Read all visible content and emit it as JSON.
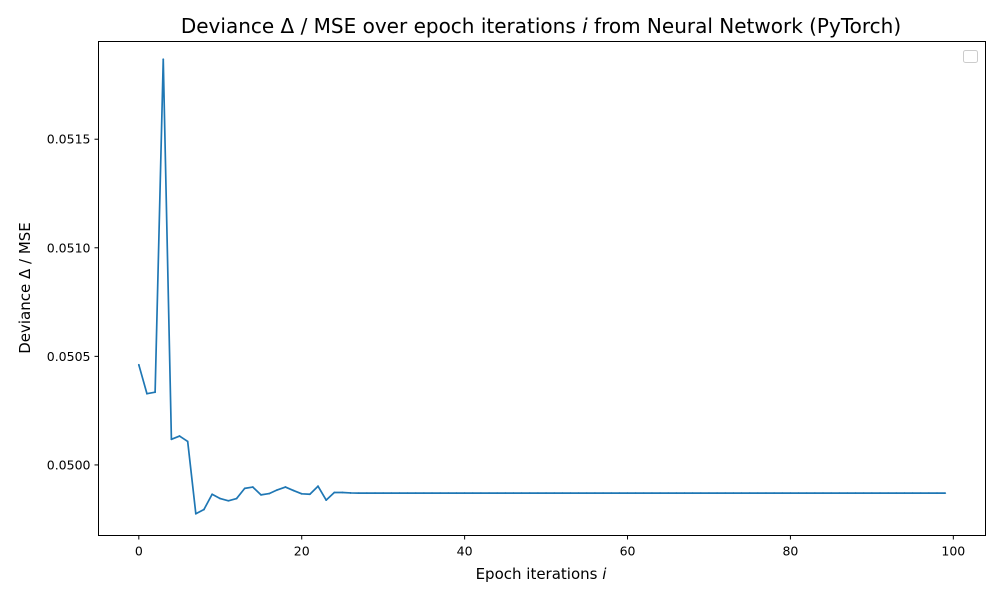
{
  "chart_data": {
    "type": "line",
    "title": "Deviance Δ / MSE over epoch iterations ",
    "title_var": "i",
    "title_suffix": " from Neural Network (PyTorch)",
    "xlabel": "Epoch iterations ",
    "xlabel_var": "i",
    "ylabel": "Deviance Δ / MSE",
    "xlim": [
      -4.95,
      103.95
    ],
    "ylim": [
      0.049675,
      0.05195
    ],
    "xticks": [
      0,
      20,
      40,
      60,
      80,
      100
    ],
    "xtick_labels": [
      "0",
      "20",
      "40",
      "60",
      "80",
      "100"
    ],
    "yticks": [
      0.05,
      0.0505,
      0.051,
      0.0515
    ],
    "ytick_labels": [
      "0.0500",
      "0.0505",
      "0.0510",
      "0.0515"
    ],
    "grid": false,
    "legend": "top-right (empty)",
    "line_color": "#1f77b4",
    "x": [
      0,
      1,
      2,
      3,
      4,
      5,
      6,
      7,
      8,
      9,
      10,
      11,
      12,
      13,
      14,
      15,
      16,
      17,
      18,
      19,
      20,
      21,
      22,
      23,
      24,
      25,
      26,
      27,
      28,
      29,
      30,
      31,
      32,
      33,
      34,
      35,
      36,
      37,
      38,
      39,
      40,
      41,
      42,
      43,
      44,
      45,
      46,
      47,
      48,
      49,
      50,
      51,
      52,
      53,
      54,
      55,
      56,
      57,
      58,
      59,
      60,
      61,
      62,
      63,
      64,
      65,
      66,
      67,
      68,
      69,
      70,
      71,
      72,
      73,
      74,
      75,
      76,
      77,
      78,
      79,
      80,
      81,
      82,
      83,
      84,
      85,
      86,
      87,
      88,
      89,
      90,
      91,
      92,
      93,
      94,
      95,
      96,
      97,
      98,
      99
    ],
    "series": [
      {
        "values": [
          0.050461,
          0.050328,
          0.050335,
          0.051868,
          0.050118,
          0.050133,
          0.050108,
          0.049775,
          0.049795,
          0.049865,
          0.049845,
          0.049835,
          0.049845,
          0.049892,
          0.049898,
          0.049862,
          0.049868,
          0.049885,
          0.049898,
          0.049882,
          0.049867,
          0.049865,
          0.049902,
          0.049838,
          0.049873,
          0.049873,
          0.049871,
          0.04987,
          0.04987,
          0.04987,
          0.04987,
          0.04987,
          0.04987,
          0.04987,
          0.04987,
          0.04987,
          0.04987,
          0.04987,
          0.04987,
          0.04987,
          0.04987,
          0.04987,
          0.04987,
          0.04987,
          0.04987,
          0.04987,
          0.04987,
          0.04987,
          0.04987,
          0.04987,
          0.04987,
          0.04987,
          0.04987,
          0.04987,
          0.04987,
          0.04987,
          0.04987,
          0.04987,
          0.04987,
          0.04987,
          0.04987,
          0.04987,
          0.04987,
          0.04987,
          0.04987,
          0.04987,
          0.04987,
          0.04987,
          0.04987,
          0.04987,
          0.04987,
          0.04987,
          0.04987,
          0.04987,
          0.04987,
          0.04987,
          0.04987,
          0.04987,
          0.04987,
          0.04987,
          0.04987,
          0.04987,
          0.04987,
          0.04987,
          0.04987,
          0.04987,
          0.04987,
          0.04987,
          0.04987,
          0.04987,
          0.04987,
          0.04987,
          0.04987,
          0.04987,
          0.04987,
          0.04987,
          0.04987,
          0.04987,
          0.04987,
          0.04987
        ]
      }
    ]
  }
}
